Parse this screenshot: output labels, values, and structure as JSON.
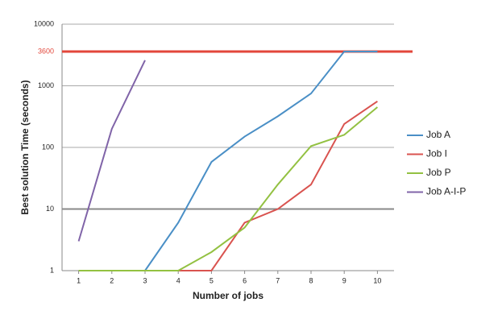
{
  "chart_data": {
    "type": "line",
    "x_label": "Number of jobs",
    "y_label": "Best solution Time (seconds)",
    "x": [
      1,
      2,
      3,
      4,
      5,
      6,
      7,
      8,
      9,
      10
    ],
    "xlim": [
      0.5,
      10.5
    ],
    "ylim": [
      1,
      10000
    ],
    "yticks": [
      1,
      10,
      100,
      1000,
      10000
    ],
    "log_y": true,
    "grid": true,
    "legend": "right",
    "reference_line": {
      "value": 3600,
      "label": "3600",
      "color": "#e2463a"
    },
    "series": [
      {
        "name": "Job A",
        "color": "#4a8fc6",
        "values": [
          null,
          null,
          1,
          6,
          58,
          150,
          320,
          750,
          3600,
          3600
        ]
      },
      {
        "name": "Job I",
        "color": "#d9534f",
        "values": [
          null,
          null,
          null,
          1,
          1,
          6,
          10,
          25,
          240,
          560
        ]
      },
      {
        "name": "Job P",
        "color": "#93c142",
        "values": [
          1,
          1,
          1,
          1,
          2,
          5,
          25,
          105,
          160,
          450
        ]
      },
      {
        "name": "Job A-I-P",
        "color": "#8064a8",
        "values": [
          3,
          200,
          2600,
          null,
          null,
          null,
          null,
          null,
          null,
          null
        ]
      }
    ]
  }
}
